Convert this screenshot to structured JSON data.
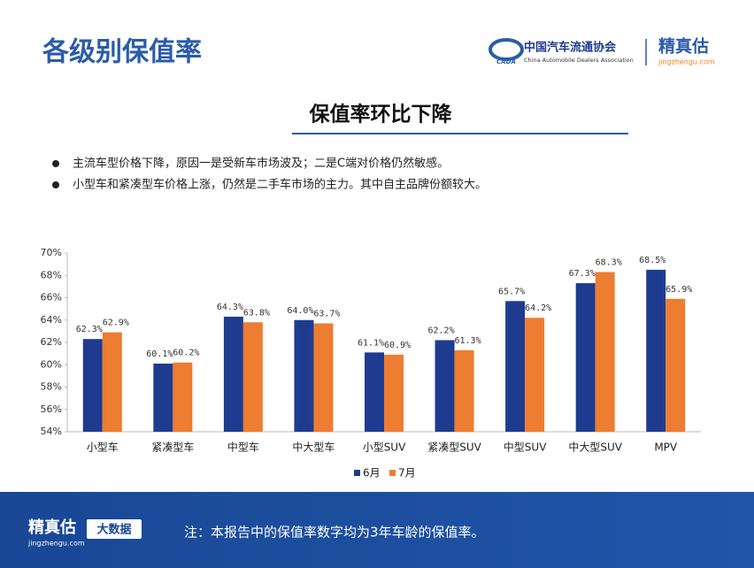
{
  "header": {
    "title": "各级别保值率",
    "logo_mark": "CADA",
    "org_name": "中国汽车流通协会",
    "org_name_en": "China Automobile Dealers Association",
    "brand": "精真估",
    "brand_url": "jingzhengu.com"
  },
  "section": {
    "title": "保值率环比下降",
    "bullets": [
      "主流车型价格下降，原因一是受新车市场波及；二是C端对价格仍然敏感。",
      "小型车和紧凑型车价格上涨，仍然是二手车市场的主力。其中自主品牌份额较大。"
    ]
  },
  "chart_data": {
    "type": "bar",
    "categories": [
      "小型车",
      "紧凑型车",
      "中型车",
      "中大型车",
      "小型SUV",
      "紧凑型SUV",
      "中型SUV",
      "中大型SUV",
      "MPV"
    ],
    "series": [
      {
        "name": "6月",
        "color": "#1f3b8f",
        "values": [
          62.3,
          60.1,
          64.3,
          64.0,
          61.1,
          62.2,
          65.7,
          67.3,
          68.5
        ],
        "value_labels": [
          "62.3%",
          "60.1%",
          "64.3%",
          "64.0%",
          "61.1%",
          "62.2%",
          "65.7%",
          "67.3%",
          "68.5%"
        ]
      },
      {
        "name": "7月",
        "color": "#ed7d31",
        "values": [
          62.9,
          60.2,
          63.8,
          63.7,
          60.9,
          61.3,
          64.2,
          68.3,
          65.9
        ],
        "value_labels": [
          "62.9%",
          "60.2%",
          "63.8%",
          "63.7%",
          "60.9%",
          "61.3%",
          "64.2%",
          "68.3%",
          "65.9%"
        ]
      }
    ],
    "ylim": [
      54,
      70
    ],
    "yticks": [
      {
        "value": 54,
        "label": "54%"
      },
      {
        "value": 56,
        "label": "56%"
      },
      {
        "value": 58,
        "label": "58%"
      },
      {
        "value": 60,
        "label": "60%"
      },
      {
        "value": 62,
        "label": "62%"
      },
      {
        "value": 64,
        "label": "64%"
      },
      {
        "value": 66,
        "label": "66%"
      },
      {
        "value": 68,
        "label": "68%"
      },
      {
        "value": 70,
        "label": "70%"
      }
    ],
    "grid": false,
    "legend": "bottom"
  },
  "footer": {
    "brand": "精真估",
    "brand_url": "jingzhengu.com",
    "badge": "大数据",
    "note": "注：本报告中的保值率数字均为3年车龄的保值率。"
  }
}
